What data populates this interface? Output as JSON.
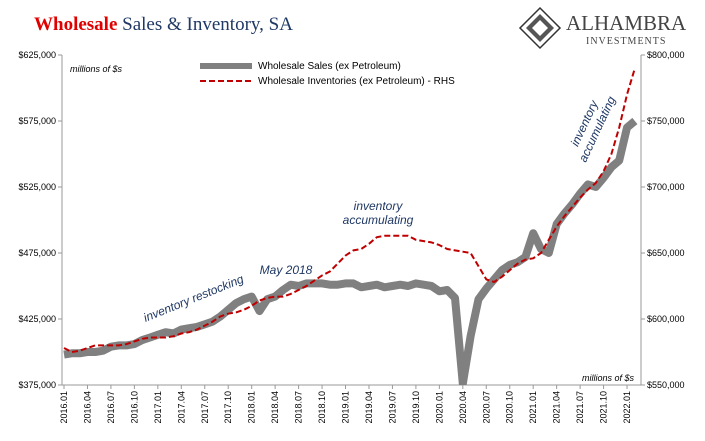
{
  "chart_data": {
    "type": "line",
    "title": [
      "Wholesale",
      "Sales & Inventory, SA"
    ],
    "logo": {
      "name": "ALHAMBRA",
      "tagline": "INVESTMENTS"
    },
    "categories": [
      "2016.01",
      null,
      null,
      "2016.04",
      null,
      null,
      "2016.07",
      null,
      null,
      "2016.10",
      null,
      null,
      "2017.01",
      null,
      null,
      "2017.04",
      null,
      null,
      "2017.07",
      null,
      null,
      "2017.10",
      null,
      null,
      "2018.01",
      null,
      null,
      "2018.04",
      null,
      null,
      "2018.07",
      null,
      null,
      "2018.10",
      null,
      null,
      "2019.01",
      null,
      null,
      "2019.04",
      null,
      null,
      "2019.07",
      null,
      null,
      "2019.10",
      null,
      null,
      "2020.01",
      null,
      null,
      "2020.04",
      null,
      null,
      "2020.07",
      null,
      null,
      "2020.10",
      null,
      null,
      "2021.01",
      null,
      null,
      "2021.04",
      null,
      null,
      "2021.07",
      null,
      null,
      "2021.10",
      null,
      null,
      "2022.01",
      null
    ],
    "series": [
      {
        "name": "Wholesale Sales (ex Petroleum)",
        "color": "#808080",
        "axis": "y",
        "values": [
          398,
          399,
          399,
          400,
          400,
          401,
          404,
          405,
          405,
          406,
          409,
          411,
          413,
          415,
          414,
          417,
          418,
          419,
          421,
          423,
          427,
          432,
          437,
          440,
          442,
          431,
          440,
          442,
          447,
          451,
          450,
          452,
          452,
          452,
          451,
          451,
          452,
          452,
          449,
          450,
          451,
          449,
          450,
          451,
          450,
          452,
          451,
          450,
          446,
          447,
          441,
          376,
          412,
          440,
          448,
          455,
          462,
          466,
          468,
          472,
          490,
          478,
          475,
          497,
          505,
          512,
          520,
          527,
          525,
          532,
          540,
          545,
          570,
          575
        ]
      },
      {
        "name": "Wholesale Inventories (ex Petroleum) - RHS",
        "color": "#c00000",
        "axis": "y2",
        "values": [
          578,
          575,
          576,
          578,
          580,
          580,
          580,
          580,
          581,
          583,
          585,
          586,
          586,
          586,
          587,
          589,
          590,
          592,
          595,
          598,
          602,
          604,
          605,
          607,
          610,
          614,
          616,
          617,
          617,
          619,
          622,
          625,
          629,
          633,
          636,
          642,
          648,
          652,
          653,
          657,
          662,
          663,
          663,
          663,
          663,
          660,
          659,
          658,
          656,
          653,
          652,
          651,
          650,
          640,
          630,
          628,
          632,
          637,
          642,
          645,
          646,
          650,
          660,
          670,
          678,
          685,
          692,
          698,
          703,
          712,
          725,
          745,
          770,
          790
        ]
      }
    ],
    "ylim": [
      375000,
      625000
    ],
    "yticks": [
      {
        "value": 375000,
        "label": "$375,000"
      },
      {
        "value": 425000,
        "label": "$425,000"
      },
      {
        "value": 475000,
        "label": "$475,000"
      },
      {
        "value": 525000,
        "label": "$525,000"
      },
      {
        "value": 575000,
        "label": "$575,000"
      },
      {
        "value": 625000,
        "label": "$625,000"
      }
    ],
    "y2lim": [
      550000,
      800000
    ],
    "y2ticks": [
      {
        "value": 550000,
        "label": "$550,000"
      },
      {
        "value": 600000,
        "label": "$600,000"
      },
      {
        "value": 650000,
        "label": "$650,000"
      },
      {
        "value": 700000,
        "label": "$700,000"
      },
      {
        "value": 750000,
        "label": "$750,000"
      },
      {
        "value": 800000,
        "label": "$800,000"
      }
    ],
    "value_unit": 1000,
    "legend": "top",
    "annotations": [
      [
        "millions of $s"
      ],
      [
        "millions of $s"
      ],
      [
        "inventory restocking"
      ],
      [
        "May 2018"
      ],
      [
        "inventory",
        "accumulating"
      ],
      [
        "inventory",
        "accumulating"
      ]
    ]
  }
}
